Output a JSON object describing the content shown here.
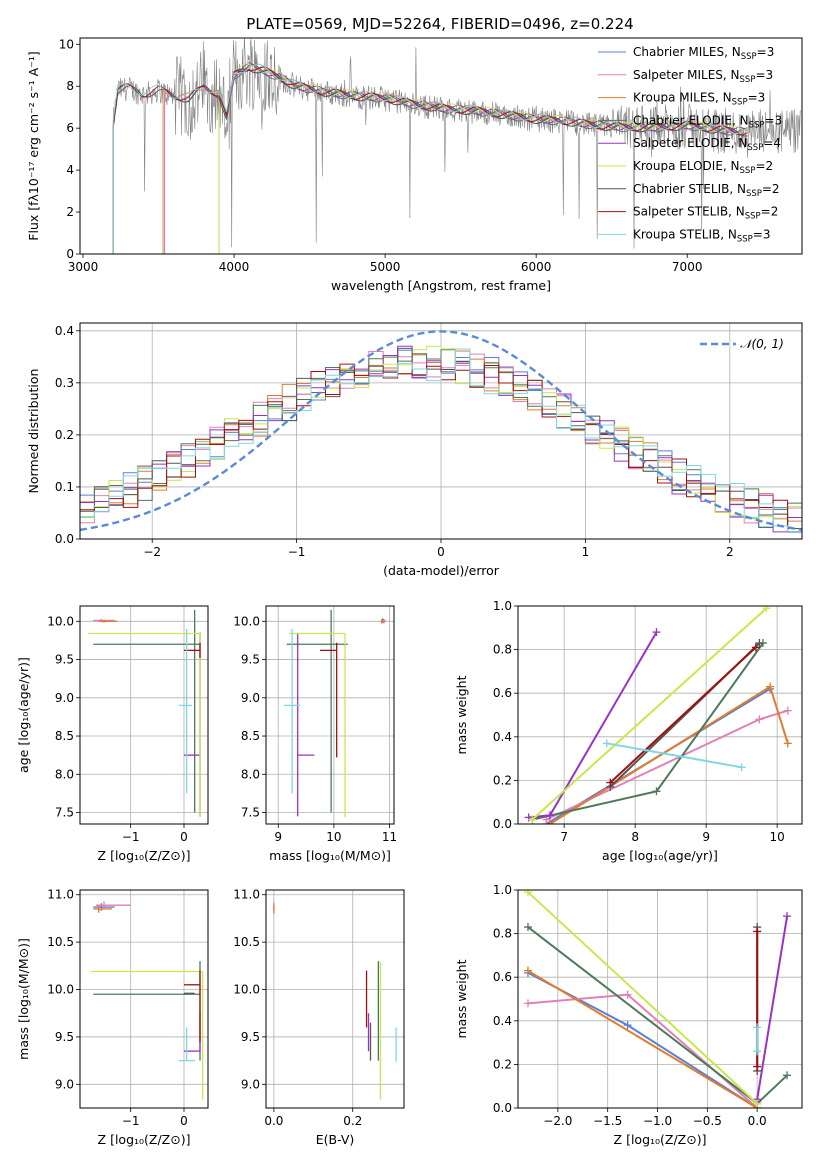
{
  "figure": {
    "title": "PLATE=0569, MJD=52264, FIBERID=0496, z=0.224"
  },
  "colors": {
    "chabrier_miles": "#5b7fd6",
    "salpeter_miles": "#e37fb6",
    "kroupa_miles": "#e07d2e",
    "chabrier_elodie": "#4d7a5a",
    "salpeter_elodie": "#9932c4",
    "kroupa_elodie": "#c8e84a",
    "chabrier_stelib": "#555555",
    "salpeter_stelib": "#a01010",
    "kroupa_stelib": "#7fd8e0",
    "observed": "#808080",
    "normal_curve": "#5b8bd6",
    "grid": "#b0b0b0"
  },
  "chart_data": [
    {
      "id": "spectrum",
      "type": "line",
      "xlabel": "wavelength [Angstrom, rest frame]",
      "ylabel": "Flux [fλ10⁻¹⁷ erg cm⁻² s⁻¹ A⁻¹]",
      "xlim": [
        2980,
        7760
      ],
      "ylim": [
        0,
        10.3
      ],
      "xticks": [
        3000,
        4000,
        5000,
        6000,
        7000
      ],
      "yticks": [
        0,
        2,
        4,
        6,
        8,
        10
      ],
      "grid": false,
      "legend_position": "top-right",
      "legend": [
        {
          "label": "Chabrier MILES, N",
          "sub": "SSP",
          "suffix": "=3",
          "color": "#5b7fd6"
        },
        {
          "label": "Salpeter MILES, N",
          "sub": "SSP",
          "suffix": "=3",
          "color": "#e37fb6"
        },
        {
          "label": "Kroupa MILES, N",
          "sub": "SSP",
          "suffix": "=3",
          "color": "#e07d2e"
        },
        {
          "label": "Chabrier ELODIE, N",
          "sub": "SSP",
          "suffix": "=3",
          "color": "#4d7a5a"
        },
        {
          "label": "Salpeter ELODIE, N",
          "sub": "SSP",
          "suffix": "=4",
          "color": "#9932c4"
        },
        {
          "label": "Kroupa ELODIE, N",
          "sub": "SSP",
          "suffix": "=2",
          "color": "#c8e84a"
        },
        {
          "label": "Chabrier STELIB, N",
          "sub": "SSP",
          "suffix": "=2",
          "color": "#555555"
        },
        {
          "label": "Salpeter STELIB, N",
          "sub": "SSP",
          "suffix": "=2",
          "color": "#a01010"
        },
        {
          "label": "Kroupa STELIB, N",
          "sub": "SSP",
          "suffix": "=3",
          "color": "#7fd8e0"
        }
      ],
      "continuum": {
        "x": [
          3200,
          3230,
          3300,
          3400,
          3500,
          3600,
          3700,
          3800,
          3900,
          3950,
          4000,
          4100,
          4200,
          4300,
          4400,
          4600,
          4800,
          5000,
          5200,
          5400,
          5600,
          5800,
          6000,
          6200,
          6400,
          6600,
          6800,
          7000,
          7200,
          7350
        ],
        "y": [
          6.2,
          7.8,
          7.9,
          7.6,
          7.8,
          7.5,
          7.4,
          7.9,
          7.6,
          6.5,
          8.5,
          8.9,
          8.7,
          8.4,
          8.0,
          7.7,
          7.5,
          7.4,
          7.1,
          6.9,
          6.8,
          6.6,
          6.4,
          6.3,
          6.1,
          6.0,
          6.0,
          6.1,
          5.9,
          5.8
        ]
      },
      "model_range": [
        3200,
        7400
      ]
    },
    {
      "id": "residual_histogram",
      "type": "line",
      "xlabel": "(data-model)/error",
      "ylabel": "Normed distribution",
      "xlim": [
        -2.5,
        2.5
      ],
      "ylim": [
        0,
        0.415
      ],
      "xticks": [
        -2,
        -1,
        0,
        1,
        2
      ],
      "yticks": [
        0.0,
        0.1,
        0.2,
        0.3,
        0.4
      ],
      "grid": true,
      "legend_position": "top-right",
      "legend_label": "𝒩(0, 1)",
      "curve": {
        "name": "N(0,1)",
        "mean": 0,
        "sigma": 1
      }
    },
    {
      "id": "age_vs_Z",
      "type": "scatter",
      "xlabel": "Z [log₁₀(Z/Z⊙)]",
      "ylabel": "age  [log₁₀(age/yr)]",
      "xlim": [
        -1.95,
        0.45
      ],
      "ylim": [
        7.35,
        10.2
      ],
      "xticks": [
        -1,
        0
      ],
      "yticks": [
        7.5,
        8.0,
        8.5,
        9.0,
        9.5,
        10.0
      ],
      "grid": true,
      "points": [
        {
          "x": -1.55,
          "y": 10.01,
          "xerr": [
            0.15,
            0.25
          ],
          "yerr": [
            0.02,
            0.02
          ],
          "color": "#5b7fd6"
        },
        {
          "x": -1.55,
          "y": 10.01,
          "xerr": [
            0.15,
            0.25
          ],
          "yerr": [
            0.02,
            0.02
          ],
          "color": "#e37fb6"
        },
        {
          "x": -1.5,
          "y": 10.0,
          "xerr": [
            0.1,
            0.25
          ],
          "yerr": [
            0.02,
            0.02
          ],
          "color": "#e07d2e"
        },
        {
          "x": 0.2,
          "y": 9.7,
          "xerr": [
            1.9,
            0.1
          ],
          "yerr": [
            2.2,
            0.45
          ],
          "color": "#4d7a5a"
        },
        {
          "x": 0.3,
          "y": 8.25,
          "xerr": [
            0.3,
            0.0
          ],
          "yerr": [
            0.8,
            1.6
          ],
          "color": "#9932c4"
        },
        {
          "x": 0.3,
          "y": 9.84,
          "xerr": [
            2.1,
            0.0
          ],
          "yerr": [
            2.4,
            0.0
          ],
          "color": "#c8e84a"
        },
        {
          "x": 0.3,
          "y": 9.62,
          "xerr": [
            0.3,
            0.0
          ],
          "yerr": [
            0.1,
            0.1
          ],
          "color": "#a01010"
        },
        {
          "x": 0.05,
          "y": 8.9,
          "xerr": [
            0.15,
            0.1
          ],
          "yerr": [
            1.15,
            1.0
          ],
          "color": "#7fd8e0"
        }
      ]
    },
    {
      "id": "age_vs_mass",
      "type": "scatter",
      "xlabel": "mass [log₁₀(M/M⊙)]",
      "ylabel": "",
      "xlim": [
        8.78,
        11.08
      ],
      "ylim": [
        7.35,
        10.2
      ],
      "xticks": [
        9,
        10,
        11
      ],
      "yticks": [
        7.5,
        8.0,
        8.5,
        9.0,
        9.5,
        10.0
      ],
      "grid": true,
      "points": [
        {
          "x": 10.88,
          "y": 10.01,
          "xerr": [
            0.02,
            0.04
          ],
          "yerr": [
            0.03,
            0.03
          ],
          "color": "#5b7fd6"
        },
        {
          "x": 10.9,
          "y": 10.0,
          "xerr": [
            0.02,
            0.04
          ],
          "yerr": [
            0.03,
            0.03
          ],
          "color": "#e37fb6"
        },
        {
          "x": 10.86,
          "y": 10.0,
          "xerr": [
            0.02,
            0.04
          ],
          "yerr": [
            0.03,
            0.03
          ],
          "color": "#e07d2e"
        },
        {
          "x": 9.95,
          "y": 9.7,
          "xerr": [
            0.8,
            0.3
          ],
          "yerr": [
            2.2,
            0.45
          ],
          "color": "#4d7a5a"
        },
        {
          "x": 9.35,
          "y": 8.25,
          "xerr": [
            0.0,
            0.3
          ],
          "yerr": [
            0.8,
            1.6
          ],
          "color": "#9932c4"
        },
        {
          "x": 10.2,
          "y": 9.84,
          "xerr": [
            1.0,
            0.0
          ],
          "yerr": [
            2.4,
            0.0
          ],
          "color": "#c8e84a"
        },
        {
          "x": 10.05,
          "y": 9.62,
          "xerr": [
            0.3,
            0.0
          ],
          "yerr": [
            1.4,
            0.1
          ],
          "color": "#a01010"
        },
        {
          "x": 9.25,
          "y": 8.9,
          "xerr": [
            0.15,
            0.15
          ],
          "yerr": [
            1.15,
            1.0
          ],
          "color": "#7fd8e0"
        }
      ]
    },
    {
      "id": "weight_vs_age",
      "type": "line",
      "xlabel": "age  [log₁₀(age/yr)]",
      "ylabel": "mass weight",
      "xlim": [
        6.35,
        10.35
      ],
      "ylim": [
        0,
        1.0
      ],
      "xticks": [
        7,
        8,
        9,
        10
      ],
      "yticks": [
        0.0,
        0.2,
        0.4,
        0.6,
        0.8,
        1.0
      ],
      "grid": true,
      "series": [
        {
          "color": "#5b7fd6",
          "x": [
            6.75,
            9.9
          ],
          "y": [
            0.0,
            0.62
          ]
        },
        {
          "color": "#e37fb6",
          "x": [
            6.75,
            9.75,
            10.15
          ],
          "y": [
            0.02,
            0.48,
            0.52
          ]
        },
        {
          "color": "#e07d2e",
          "x": [
            6.8,
            9.9,
            10.15
          ],
          "y": [
            0.0,
            0.63,
            0.37
          ]
        },
        {
          "color": "#4d7a5a",
          "x": [
            6.55,
            8.3,
            9.8
          ],
          "y": [
            0.02,
            0.15,
            0.83
          ]
        },
        {
          "color": "#9932c4",
          "x": [
            6.5,
            6.8,
            8.3
          ],
          "y": [
            0.03,
            0.04,
            0.88
          ]
        },
        {
          "color": "#c8e84a",
          "x": [
            6.55,
            9.85
          ],
          "y": [
            0.02,
            0.99
          ]
        },
        {
          "color": "#555555",
          "x": [
            7.65,
            9.75
          ],
          "y": [
            0.17,
            0.83
          ]
        },
        {
          "color": "#a01010",
          "x": [
            7.65,
            9.7
          ],
          "y": [
            0.19,
            0.81
          ]
        },
        {
          "color": "#7fd8e0",
          "x": [
            7.6,
            9.5
          ],
          "y": [
            0.37,
            0.26
          ]
        }
      ]
    },
    {
      "id": "mass_vs_Z",
      "type": "scatter",
      "xlabel": "Z [log₁₀(Z/Z⊙)]",
      "ylabel": "mass [log₁₀(M/M⊙)]",
      "xlim": [
        -1.95,
        0.45
      ],
      "ylim": [
        8.75,
        11.05
      ],
      "xticks": [
        -1,
        0
      ],
      "yticks": [
        9.0,
        9.5,
        10.0,
        10.5,
        11.0
      ],
      "grid": true,
      "points": [
        {
          "x": -1.55,
          "y": 10.87,
          "xerr": [
            0.15,
            0.25
          ],
          "yerr": [
            0.04,
            0.04
          ],
          "color": "#5b7fd6"
        },
        {
          "x": -1.5,
          "y": 10.89,
          "xerr": [
            0.15,
            0.5
          ],
          "yerr": [
            0.04,
            0.04
          ],
          "color": "#e37fb6"
        },
        {
          "x": -1.6,
          "y": 10.85,
          "xerr": [
            0.1,
            0.25
          ],
          "yerr": [
            0.04,
            0.04
          ],
          "color": "#e07d2e"
        },
        {
          "x": 0.3,
          "y": 9.95,
          "xerr": [
            2.0,
            0.0
          ],
          "yerr": [
            0.7,
            0.35
          ],
          "color": "#4d7a5a"
        },
        {
          "x": 0.3,
          "y": 9.35,
          "xerr": [
            0.3,
            0.0
          ],
          "yerr": [
            0.0,
            0.42
          ],
          "color": "#9932c4"
        },
        {
          "x": 0.35,
          "y": 10.19,
          "xerr": [
            2.1,
            0.0
          ],
          "yerr": [
            1.35,
            0.0
          ],
          "color": "#c8e84a"
        },
        {
          "x": 0.2,
          "y": 9.96,
          "xerr": [
            0.2,
            0.0
          ],
          "yerr": [
            0.0,
            0.0
          ],
          "color": "#555555"
        },
        {
          "x": 0.3,
          "y": 10.05,
          "xerr": [
            0.3,
            0.0
          ],
          "yerr": [
            0.6,
            0.15
          ],
          "color": "#a01010"
        },
        {
          "x": 0.05,
          "y": 9.25,
          "xerr": [
            0.15,
            0.15
          ],
          "yerr": [
            0.0,
            0.35
          ],
          "color": "#7fd8e0"
        }
      ]
    },
    {
      "id": "mass_vs_ebv",
      "type": "scatter",
      "xlabel": "E(B-V)",
      "ylabel": "",
      "xlim": [
        -0.02,
        0.33
      ],
      "ylim": [
        8.75,
        11.05
      ],
      "xticks": [
        0.0,
        0.2
      ],
      "yticks": [
        9.0,
        9.5,
        10.0,
        10.5,
        11.0
      ],
      "grid": true,
      "points": [
        {
          "x": 0.0,
          "y": 10.87,
          "xerr": [
            0.0,
            0.0
          ],
          "yerr": [
            0.04,
            0.04
          ],
          "color": "#5b7fd6"
        },
        {
          "x": 0.0,
          "y": 10.88,
          "xerr": [
            0.0,
            0.0
          ],
          "yerr": [
            0.04,
            0.04
          ],
          "color": "#e37fb6"
        },
        {
          "x": 0.0,
          "y": 10.84,
          "xerr": [
            0.0,
            0.0
          ],
          "yerr": [
            0.04,
            0.04
          ],
          "color": "#e07d2e"
        },
        {
          "x": 0.265,
          "y": 9.95,
          "xerr": [
            0.0,
            0.0
          ],
          "yerr": [
            0.7,
            0.35
          ],
          "color": "#4d7a5a"
        },
        {
          "x": 0.24,
          "y": 9.35,
          "xerr": [
            0.0,
            0.0
          ],
          "yerr": [
            0.0,
            0.4
          ],
          "color": "#9932c4"
        },
        {
          "x": 0.27,
          "y": 10.19,
          "xerr": [
            0.0,
            0.0
          ],
          "yerr": [
            1.35,
            0.1
          ],
          "color": "#c8e84a"
        },
        {
          "x": 0.245,
          "y": 9.6,
          "xerr": [
            0.0,
            0.0
          ],
          "yerr": [
            0.35,
            0.05
          ],
          "color": "#555555"
        },
        {
          "x": 0.235,
          "y": 9.9,
          "xerr": [
            0.0,
            0.0
          ],
          "yerr": [
            0.3,
            0.3
          ],
          "color": "#a01010"
        },
        {
          "x": 0.31,
          "y": 9.42,
          "xerr": [
            0.0,
            0.0
          ],
          "yerr": [
            0.18,
            0.18
          ],
          "color": "#7fd8e0"
        }
      ]
    },
    {
      "id": "weight_vs_Z",
      "type": "line",
      "xlabel": "Z [log₁₀(Z/Z⊙)]",
      "ylabel": "mass weight",
      "xlim": [
        -2.4,
        0.45
      ],
      "ylim": [
        0,
        1.0
      ],
      "xticks": [
        -2.0,
        -1.5,
        -1.0,
        -0.5,
        0.0
      ],
      "yticks": [
        0.0,
        0.2,
        0.4,
        0.6,
        0.8,
        1.0
      ],
      "grid": true,
      "series": [
        {
          "color": "#5b7fd6",
          "x": [
            -2.3,
            -1.3,
            0.0
          ],
          "y": [
            0.62,
            0.38,
            0.0
          ]
        },
        {
          "color": "#e37fb6",
          "x": [
            -2.3,
            -1.3,
            0.0
          ],
          "y": [
            0.48,
            0.52,
            0.0
          ]
        },
        {
          "color": "#e07d2e",
          "x": [
            -2.3,
            0.0
          ],
          "y": [
            0.63,
            0.0
          ]
        },
        {
          "color": "#4d7a5a",
          "x": [
            -2.3,
            0.0,
            0.3
          ],
          "y": [
            0.83,
            0.02,
            0.15
          ]
        },
        {
          "color": "#9932c4",
          "x": [
            0.0,
            0.0,
            0.3
          ],
          "y": [
            0.03,
            0.04,
            0.88
          ]
        },
        {
          "color": "#c8e84a",
          "x": [
            -2.3,
            0.0
          ],
          "y": [
            0.99,
            0.02
          ]
        },
        {
          "color": "#555555",
          "x": [
            0.0,
            0.0
          ],
          "y": [
            0.17,
            0.83
          ]
        },
        {
          "color": "#a01010",
          "x": [
            0.0,
            0.0
          ],
          "y": [
            0.19,
            0.81
          ]
        },
        {
          "color": "#7fd8e0",
          "x": [
            0.0,
            0.0
          ],
          "y": [
            0.26,
            0.37
          ]
        }
      ]
    }
  ]
}
